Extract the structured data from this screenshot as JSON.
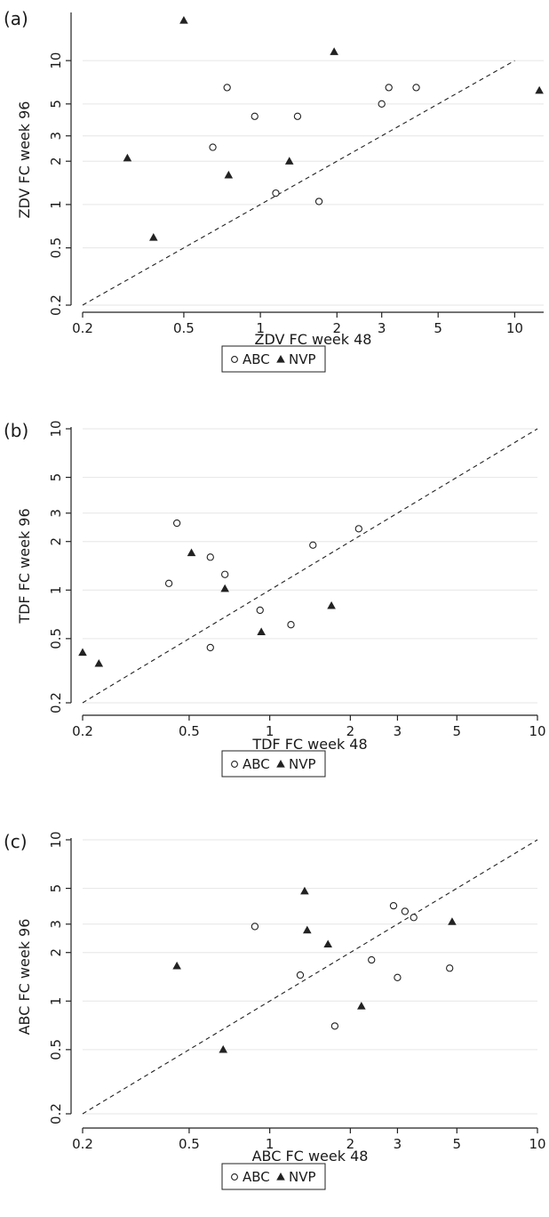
{
  "chart_data": [
    {
      "type": "scatter",
      "panel_label": "(a)",
      "xlabel": "ZDV FC week 48",
      "ylabel": "ZDV FC week 96",
      "x_scale": "log",
      "y_scale": "log",
      "xlim": [
        0.2,
        13
      ],
      "ylim": [
        0.2,
        21
      ],
      "xticks": [
        "0.2",
        "0.5",
        "1",
        "2",
        "3",
        "5",
        "10"
      ],
      "yticks": [
        "0.2",
        "0.5",
        "1",
        "2",
        "3",
        "5",
        "10"
      ],
      "grid": "horizontal",
      "reference_line": "y = x (dashed)",
      "legend": {
        "placement": "bottom",
        "entries": [
          "ABC",
          "NVP"
        ]
      },
      "series": [
        {
          "name": "ABC",
          "marker": "hollow-circle",
          "points": [
            [
              0.65,
              2.5
            ],
            [
              0.74,
              6.5
            ],
            [
              0.95,
              4.1
            ],
            [
              1.4,
              4.1
            ],
            [
              1.15,
              1.2
            ],
            [
              1.7,
              1.05
            ],
            [
              3.0,
              5.0
            ],
            [
              3.2,
              6.5
            ],
            [
              4.1,
              6.5
            ]
          ]
        },
        {
          "name": "NVP",
          "marker": "filled-triangle",
          "points": [
            [
              0.5,
              19
            ],
            [
              0.3,
              2.1
            ],
            [
              0.38,
              0.59
            ],
            [
              0.75,
              1.6
            ],
            [
              1.3,
              2.0
            ],
            [
              1.95,
              11.5
            ],
            [
              12.5,
              6.2
            ]
          ]
        }
      ]
    },
    {
      "type": "scatter",
      "panel_label": "(b)",
      "xlabel": "TDF FC week 48",
      "ylabel": "TDF FC week 96",
      "x_scale": "log",
      "y_scale": "log",
      "xlim": [
        0.2,
        10
      ],
      "ylim": [
        0.2,
        10
      ],
      "xticks": [
        "0.2",
        "0.5",
        "1",
        "2",
        "3",
        "5",
        "10"
      ],
      "yticks": [
        "0.2",
        "0.5",
        "1",
        "2",
        "3",
        "5",
        "10"
      ],
      "grid": "horizontal",
      "reference_line": "y = x (dashed)",
      "legend": {
        "placement": "bottom",
        "entries": [
          "ABC",
          "NVP"
        ]
      },
      "series": [
        {
          "name": "ABC",
          "marker": "hollow-circle",
          "points": [
            [
              0.45,
              2.6
            ],
            [
              0.42,
              1.1
            ],
            [
              0.6,
              1.6
            ],
            [
              0.68,
              1.25
            ],
            [
              0.6,
              0.44
            ],
            [
              0.92,
              0.75
            ],
            [
              1.2,
              0.61
            ],
            [
              1.45,
              1.9
            ],
            [
              2.15,
              2.4
            ]
          ]
        },
        {
          "name": "NVP",
          "marker": "filled-triangle",
          "points": [
            [
              0.2,
              0.41
            ],
            [
              0.23,
              0.35
            ],
            [
              0.51,
              1.7
            ],
            [
              0.68,
              1.02
            ],
            [
              0.93,
              0.55
            ],
            [
              1.7,
              0.8
            ]
          ]
        }
      ]
    },
    {
      "type": "scatter",
      "panel_label": "(c)",
      "xlabel": "ABC FC week 48",
      "ylabel": "ABC FC week 96",
      "x_scale": "log",
      "y_scale": "log",
      "xlim": [
        0.2,
        10
      ],
      "ylim": [
        0.2,
        10
      ],
      "xticks": [
        "0.2",
        "0.5",
        "1",
        "2",
        "3",
        "5",
        "10"
      ],
      "yticks": [
        "0.2",
        "0.5",
        "1",
        "2",
        "3",
        "5",
        "10"
      ],
      "grid": "horizontal",
      "reference_line": "y = x (dashed)",
      "legend": {
        "placement": "bottom",
        "entries": [
          "ABC",
          "NVP"
        ]
      },
      "series": [
        {
          "name": "ABC",
          "marker": "hollow-circle",
          "points": [
            [
              0.88,
              2.9
            ],
            [
              1.3,
              1.45
            ],
            [
              1.75,
              0.7
            ],
            [
              2.4,
              1.8
            ],
            [
              2.9,
              3.9
            ],
            [
              3.0,
              1.4
            ],
            [
              3.2,
              3.6
            ],
            [
              3.45,
              3.3
            ],
            [
              4.7,
              1.6
            ]
          ]
        },
        {
          "name": "NVP",
          "marker": "filled-triangle",
          "points": [
            [
              0.45,
              1.65
            ],
            [
              0.67,
              0.5
            ],
            [
              1.35,
              4.8
            ],
            [
              1.38,
              2.75
            ],
            [
              1.65,
              2.25
            ],
            [
              2.2,
              0.93
            ],
            [
              4.8,
              3.1
            ]
          ]
        }
      ]
    }
  ],
  "panels_layout_note": ""
}
